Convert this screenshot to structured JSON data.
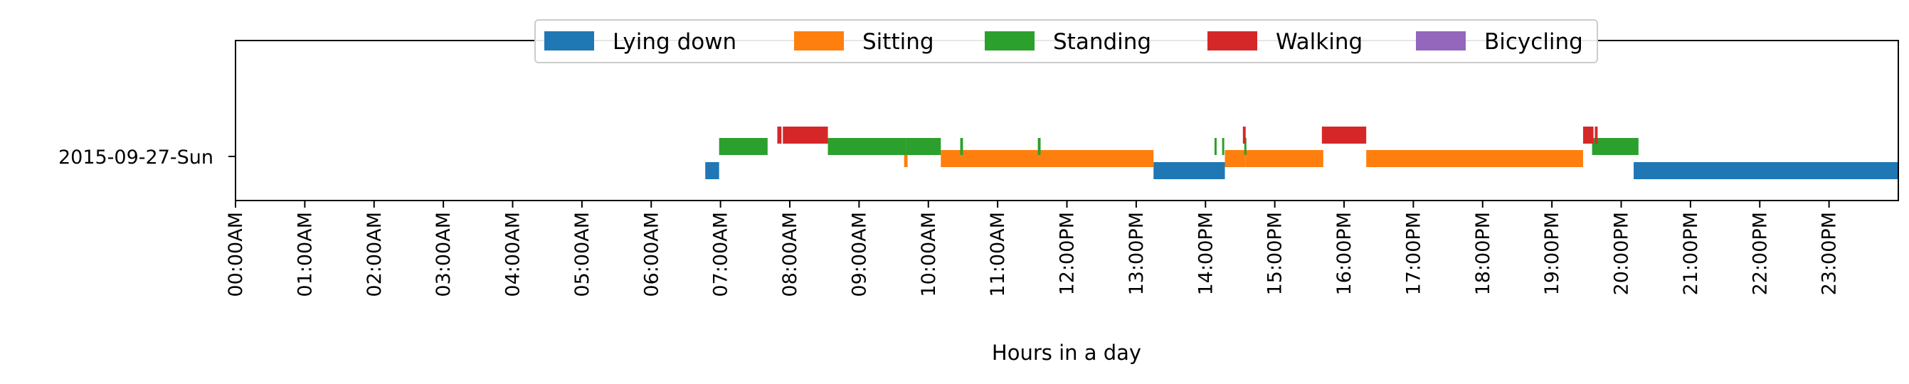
{
  "chart_data": {
    "type": "timeline",
    "xlabel": "Hours in a day",
    "xlim": [
      0,
      24
    ],
    "x_ticks": [
      {
        "value": 0,
        "label": "00:00AM"
      },
      {
        "value": 1,
        "label": "01:00AM"
      },
      {
        "value": 2,
        "label": "02:00AM"
      },
      {
        "value": 3,
        "label": "03:00AM"
      },
      {
        "value": 4,
        "label": "04:00AM"
      },
      {
        "value": 5,
        "label": "05:00AM"
      },
      {
        "value": 6,
        "label": "06:00AM"
      },
      {
        "value": 7,
        "label": "07:00AM"
      },
      {
        "value": 8,
        "label": "08:00AM"
      },
      {
        "value": 9,
        "label": "09:00AM"
      },
      {
        "value": 10,
        "label": "10:00AM"
      },
      {
        "value": 11,
        "label": "11:00AM"
      },
      {
        "value": 12,
        "label": "12:00PM"
      },
      {
        "value": 13,
        "label": "13:00PM"
      },
      {
        "value": 14,
        "label": "14:00PM"
      },
      {
        "value": 15,
        "label": "15:00PM"
      },
      {
        "value": 16,
        "label": "16:00PM"
      },
      {
        "value": 17,
        "label": "17:00PM"
      },
      {
        "value": 18,
        "label": "18:00PM"
      },
      {
        "value": 19,
        "label": "19:00PM"
      },
      {
        "value": 20,
        "label": "20:00PM"
      },
      {
        "value": 21,
        "label": "21:00PM"
      },
      {
        "value": 22,
        "label": "22:00PM"
      },
      {
        "value": 23,
        "label": "23:00PM"
      }
    ],
    "y_category": "2015-09-27-Sun",
    "legend_position": "top-center",
    "series": [
      {
        "name": "Lying down",
        "color": "#1f77b4",
        "intervals": [
          [
            6.78,
            6.98
          ],
          [
            13.25,
            14.28
          ],
          [
            20.18,
            24.0
          ]
        ]
      },
      {
        "name": "Sitting",
        "color": "#ff7f0e",
        "intervals": [
          [
            9.65,
            9.7
          ],
          [
            10.18,
            13.25
          ],
          [
            14.28,
            14.58
          ],
          [
            14.58,
            15.7
          ],
          [
            16.32,
            19.45
          ]
        ]
      },
      {
        "name": "Standing",
        "color": "#2ca02c",
        "intervals": [
          [
            6.98,
            7.68
          ],
          [
            8.55,
            9.68
          ],
          [
            9.68,
            10.18
          ],
          [
            10.46,
            10.5
          ],
          [
            11.58,
            11.62
          ],
          [
            14.13,
            14.16
          ],
          [
            14.24,
            14.27
          ],
          [
            14.56,
            14.59
          ],
          [
            19.58,
            20.25
          ]
        ]
      },
      {
        "name": "Walking",
        "color": "#d62728",
        "intervals": [
          [
            7.82,
            7.88
          ],
          [
            7.9,
            8.55
          ],
          [
            14.54,
            14.58
          ],
          [
            15.68,
            16.32
          ],
          [
            19.45,
            19.6
          ],
          [
            19.62,
            19.66
          ]
        ]
      },
      {
        "name": "Bicycling",
        "color": "#9467bd",
        "intervals": []
      }
    ]
  }
}
